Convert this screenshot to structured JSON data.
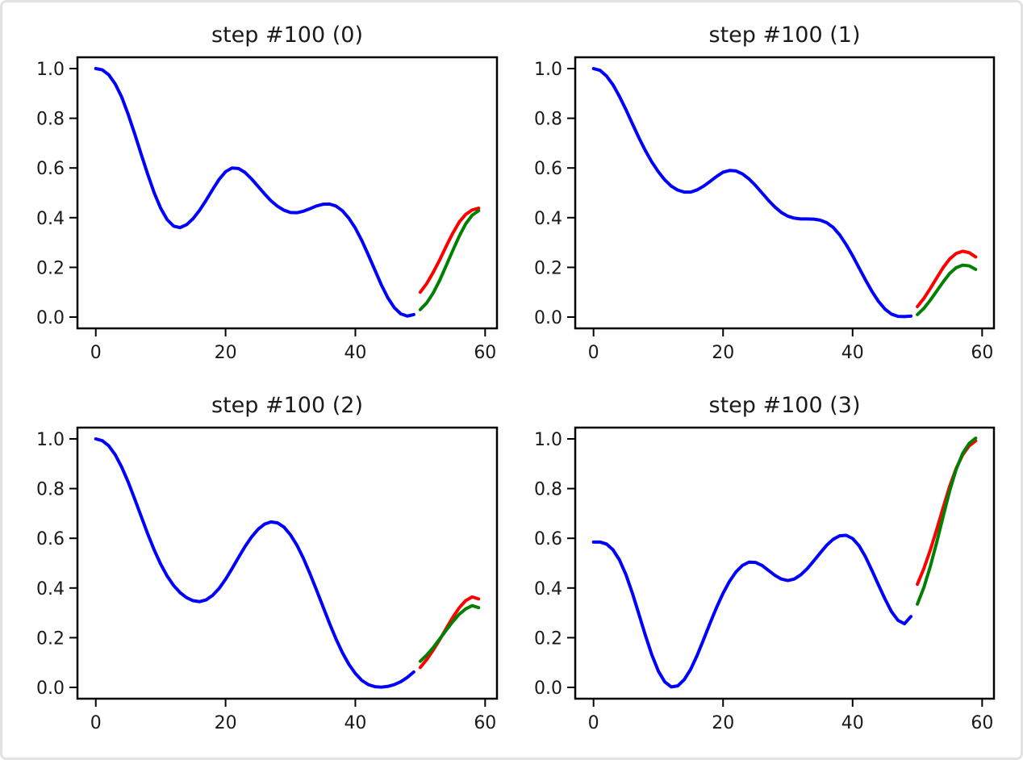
{
  "figure": {
    "background": "#ffffff",
    "border_color": "#e2e2e2",
    "text_color": "#1a1a1a",
    "spine_color": "#000000"
  },
  "chart_data": [
    {
      "type": "line",
      "title": "step #100 (0)",
      "xlabel": "",
      "ylabel": "",
      "grid": false,
      "legend": null,
      "xlim": [
        -2.95,
        61.95
      ],
      "ylim": [
        -0.0487,
        1.0487
      ],
      "xticks": [
        0,
        20,
        40,
        60
      ],
      "xtick_labels": [
        "0",
        "20",
        "40",
        "60"
      ],
      "yticks": [
        0.0,
        0.2,
        0.4,
        0.6,
        0.8,
        1.0
      ],
      "ytick_labels": [
        "0.0",
        "0.2",
        "0.4",
        "0.6",
        "0.8",
        "1.0"
      ],
      "series": [
        {
          "name": "blue-series",
          "color": "#0000ff",
          "x_start": 0,
          "values": [
            1.0,
            0.995,
            0.975,
            0.938,
            0.885,
            0.815,
            0.737,
            0.655,
            0.575,
            0.5,
            0.438,
            0.392,
            0.366,
            0.36,
            0.372,
            0.396,
            0.43,
            0.47,
            0.513,
            0.554,
            0.585,
            0.6,
            0.598,
            0.582,
            0.556,
            0.526,
            0.496,
            0.468,
            0.446,
            0.43,
            0.421,
            0.42,
            0.426,
            0.436,
            0.447,
            0.454,
            0.455,
            0.447,
            0.428,
            0.398,
            0.358,
            0.308,
            0.25,
            0.19,
            0.13,
            0.078,
            0.038,
            0.013,
            0.004,
            0.01
          ]
        },
        {
          "name": "red-series",
          "color": "#ff0000",
          "x_start": 50,
          "values": [
            0.1,
            0.135,
            0.18,
            0.23,
            0.285,
            0.337,
            0.382,
            0.413,
            0.431,
            0.438
          ]
        },
        {
          "name": "green-series",
          "color": "#008000",
          "x_start": 50,
          "values": [
            0.03,
            0.057,
            0.097,
            0.148,
            0.207,
            0.267,
            0.325,
            0.375,
            0.41,
            0.428
          ]
        }
      ]
    },
    {
      "type": "line",
      "title": "step #100 (1)",
      "xlabel": "",
      "ylabel": "",
      "grid": false,
      "legend": null,
      "xlim": [
        -2.95,
        61.95
      ],
      "ylim": [
        -0.0487,
        1.0487
      ],
      "xticks": [
        0,
        20,
        40,
        60
      ],
      "xtick_labels": [
        "0",
        "20",
        "40",
        "60"
      ],
      "yticks": [
        0.0,
        0.2,
        0.4,
        0.6,
        0.8,
        1.0
      ],
      "ytick_labels": [
        "0.0",
        "0.2",
        "0.4",
        "0.6",
        "0.8",
        "1.0"
      ],
      "series": [
        {
          "name": "blue-series",
          "color": "#0000ff",
          "x_start": 0,
          "values": [
            1.0,
            0.993,
            0.97,
            0.935,
            0.888,
            0.835,
            0.778,
            0.722,
            0.67,
            0.624,
            0.585,
            0.552,
            0.527,
            0.511,
            0.503,
            0.503,
            0.512,
            0.527,
            0.546,
            0.566,
            0.583,
            0.59,
            0.588,
            0.576,
            0.556,
            0.53,
            0.5,
            0.47,
            0.443,
            0.421,
            0.406,
            0.398,
            0.395,
            0.395,
            0.394,
            0.39,
            0.38,
            0.361,
            0.331,
            0.292,
            0.247,
            0.198,
            0.149,
            0.103,
            0.063,
            0.032,
            0.012,
            0.003,
            0.002,
            0.004
          ]
        },
        {
          "name": "red-series",
          "color": "#ff0000",
          "x_start": 50,
          "values": [
            0.042,
            0.075,
            0.115,
            0.158,
            0.2,
            0.234,
            0.256,
            0.265,
            0.259,
            0.242
          ]
        },
        {
          "name": "green-series",
          "color": "#008000",
          "x_start": 50,
          "values": [
            0.01,
            0.035,
            0.068,
            0.105,
            0.142,
            0.176,
            0.199,
            0.209,
            0.206,
            0.192
          ]
        }
      ]
    },
    {
      "type": "line",
      "title": "step #100 (2)",
      "xlabel": "",
      "ylabel": "",
      "grid": false,
      "legend": null,
      "xlim": [
        -2.95,
        61.95
      ],
      "ylim": [
        -0.0487,
        1.0487
      ],
      "xticks": [
        0,
        20,
        40,
        60
      ],
      "xtick_labels": [
        "0",
        "20",
        "40",
        "60"
      ],
      "yticks": [
        0.0,
        0.2,
        0.4,
        0.6,
        0.8,
        1.0
      ],
      "ytick_labels": [
        "0.0",
        "0.2",
        "0.4",
        "0.6",
        "0.8",
        "1.0"
      ],
      "series": [
        {
          "name": "blue-series",
          "color": "#0000ff",
          "x_start": 0,
          "values": [
            1.0,
            0.993,
            0.972,
            0.936,
            0.886,
            0.826,
            0.758,
            0.688,
            0.618,
            0.553,
            0.496,
            0.448,
            0.41,
            0.381,
            0.361,
            0.349,
            0.345,
            0.352,
            0.37,
            0.398,
            0.435,
            0.478,
            0.523,
            0.567,
            0.605,
            0.636,
            0.657,
            0.666,
            0.662,
            0.645,
            0.614,
            0.572,
            0.519,
            0.458,
            0.393,
            0.326,
            0.259,
            0.196,
            0.14,
            0.093,
            0.056,
            0.028,
            0.011,
            0.003,
            0.001,
            0.004,
            0.011,
            0.023,
            0.04,
            0.062
          ]
        },
        {
          "name": "red-series",
          "color": "#ff0000",
          "x_start": 50,
          "values": [
            0.08,
            0.112,
            0.15,
            0.192,
            0.237,
            0.281,
            0.32,
            0.349,
            0.364,
            0.356
          ]
        },
        {
          "name": "green-series",
          "color": "#008000",
          "x_start": 50,
          "values": [
            0.105,
            0.13,
            0.16,
            0.195,
            0.23,
            0.264,
            0.294,
            0.316,
            0.329,
            0.321
          ]
        }
      ]
    },
    {
      "type": "line",
      "title": "step #100 (3)",
      "xlabel": "",
      "ylabel": "",
      "grid": false,
      "legend": null,
      "xlim": [
        -2.95,
        61.95
      ],
      "ylim": [
        -0.0487,
        1.0487
      ],
      "xticks": [
        0,
        20,
        40,
        60
      ],
      "xtick_labels": [
        "0",
        "20",
        "40",
        "60"
      ],
      "yticks": [
        0.0,
        0.2,
        0.4,
        0.6,
        0.8,
        1.0
      ],
      "ytick_labels": [
        "0.0",
        "0.2",
        "0.4",
        "0.6",
        "0.8",
        "1.0"
      ],
      "series": [
        {
          "name": "blue-series",
          "color": "#0000ff",
          "x_start": 0,
          "values": [
            0.585,
            0.585,
            0.577,
            0.554,
            0.513,
            0.454,
            0.379,
            0.295,
            0.21,
            0.131,
            0.066,
            0.022,
            0.002,
            0.006,
            0.031,
            0.073,
            0.129,
            0.193,
            0.259,
            0.322,
            0.379,
            0.427,
            0.465,
            0.491,
            0.504,
            0.503,
            0.491,
            0.471,
            0.451,
            0.436,
            0.43,
            0.436,
            0.453,
            0.478,
            0.509,
            0.541,
            0.572,
            0.596,
            0.61,
            0.612,
            0.599,
            0.57,
            0.525,
            0.47,
            0.412,
            0.356,
            0.305,
            0.27,
            0.256,
            0.285
          ]
        },
        {
          "name": "red-series",
          "color": "#ff0000",
          "x_start": 50,
          "values": [
            0.415,
            0.478,
            0.553,
            0.637,
            0.725,
            0.81,
            0.882,
            0.936,
            0.972,
            0.992
          ]
        },
        {
          "name": "green-series",
          "color": "#008000",
          "x_start": 50,
          "values": [
            0.335,
            0.402,
            0.487,
            0.585,
            0.69,
            0.792,
            0.878,
            0.942,
            0.982,
            1.003
          ]
        }
      ]
    }
  ]
}
